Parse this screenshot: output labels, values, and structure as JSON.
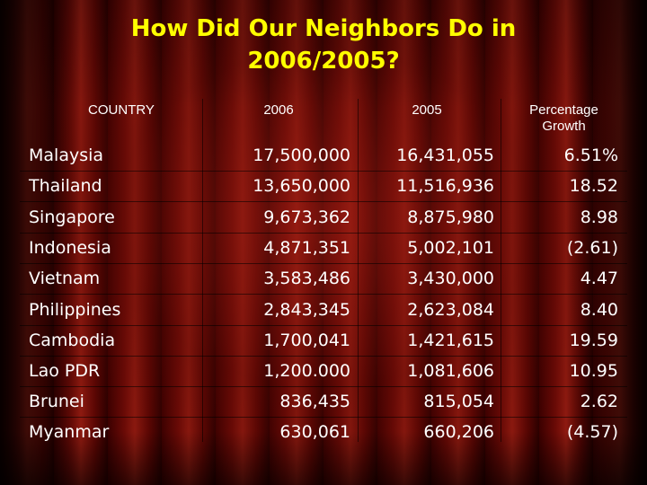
{
  "slide": {
    "title_line1": "How Did Our Neighbors Do in",
    "title_line2": "2006/2005?"
  },
  "table": {
    "headers": {
      "country": "COUNTRY",
      "y2006": "2006",
      "y2005": "2005",
      "growth_line1": "Percentage",
      "growth_line2": "Growth"
    },
    "rows": [
      {
        "country": "Malaysia",
        "y2006": "17,500,000",
        "y2005": "16,431,055",
        "growth": "6.51%"
      },
      {
        "country": "Thailand",
        "y2006": "13,650,000",
        "y2005": "11,516,936",
        "growth": "18.52"
      },
      {
        "country": "Singapore",
        "y2006": "9,673,362",
        "y2005": "8,875,980",
        "growth": "8.98"
      },
      {
        "country": "Indonesia",
        "y2006": "4,871,351",
        "y2005": "5,002,101",
        "growth": "(2.61)"
      },
      {
        "country": "Vietnam",
        "y2006": "3,583,486",
        "y2005": "3,430,000",
        "growth": "4.47"
      },
      {
        "country": "Philippines",
        "y2006": "2,843,345",
        "y2005": "2,623,084",
        "growth": "8.40"
      },
      {
        "country": "Cambodia",
        "y2006": "1,700,041",
        "y2005": "1,421,615",
        "growth": "19.59"
      },
      {
        "country": "Lao PDR",
        "y2006": "1,200.000",
        "y2005": "1,081,606",
        "growth": "10.95"
      },
      {
        "country": "Brunei",
        "y2006": "836,435",
        "y2005": "815,054",
        "growth": "2.62"
      },
      {
        "country": "Myanmar",
        "y2006": "630,061",
        "y2005": "660,206",
        "growth": "(4.57)"
      }
    ]
  },
  "colors": {
    "title": "#ffff00",
    "text": "#ffffff",
    "curtain": "#6a0a06"
  }
}
